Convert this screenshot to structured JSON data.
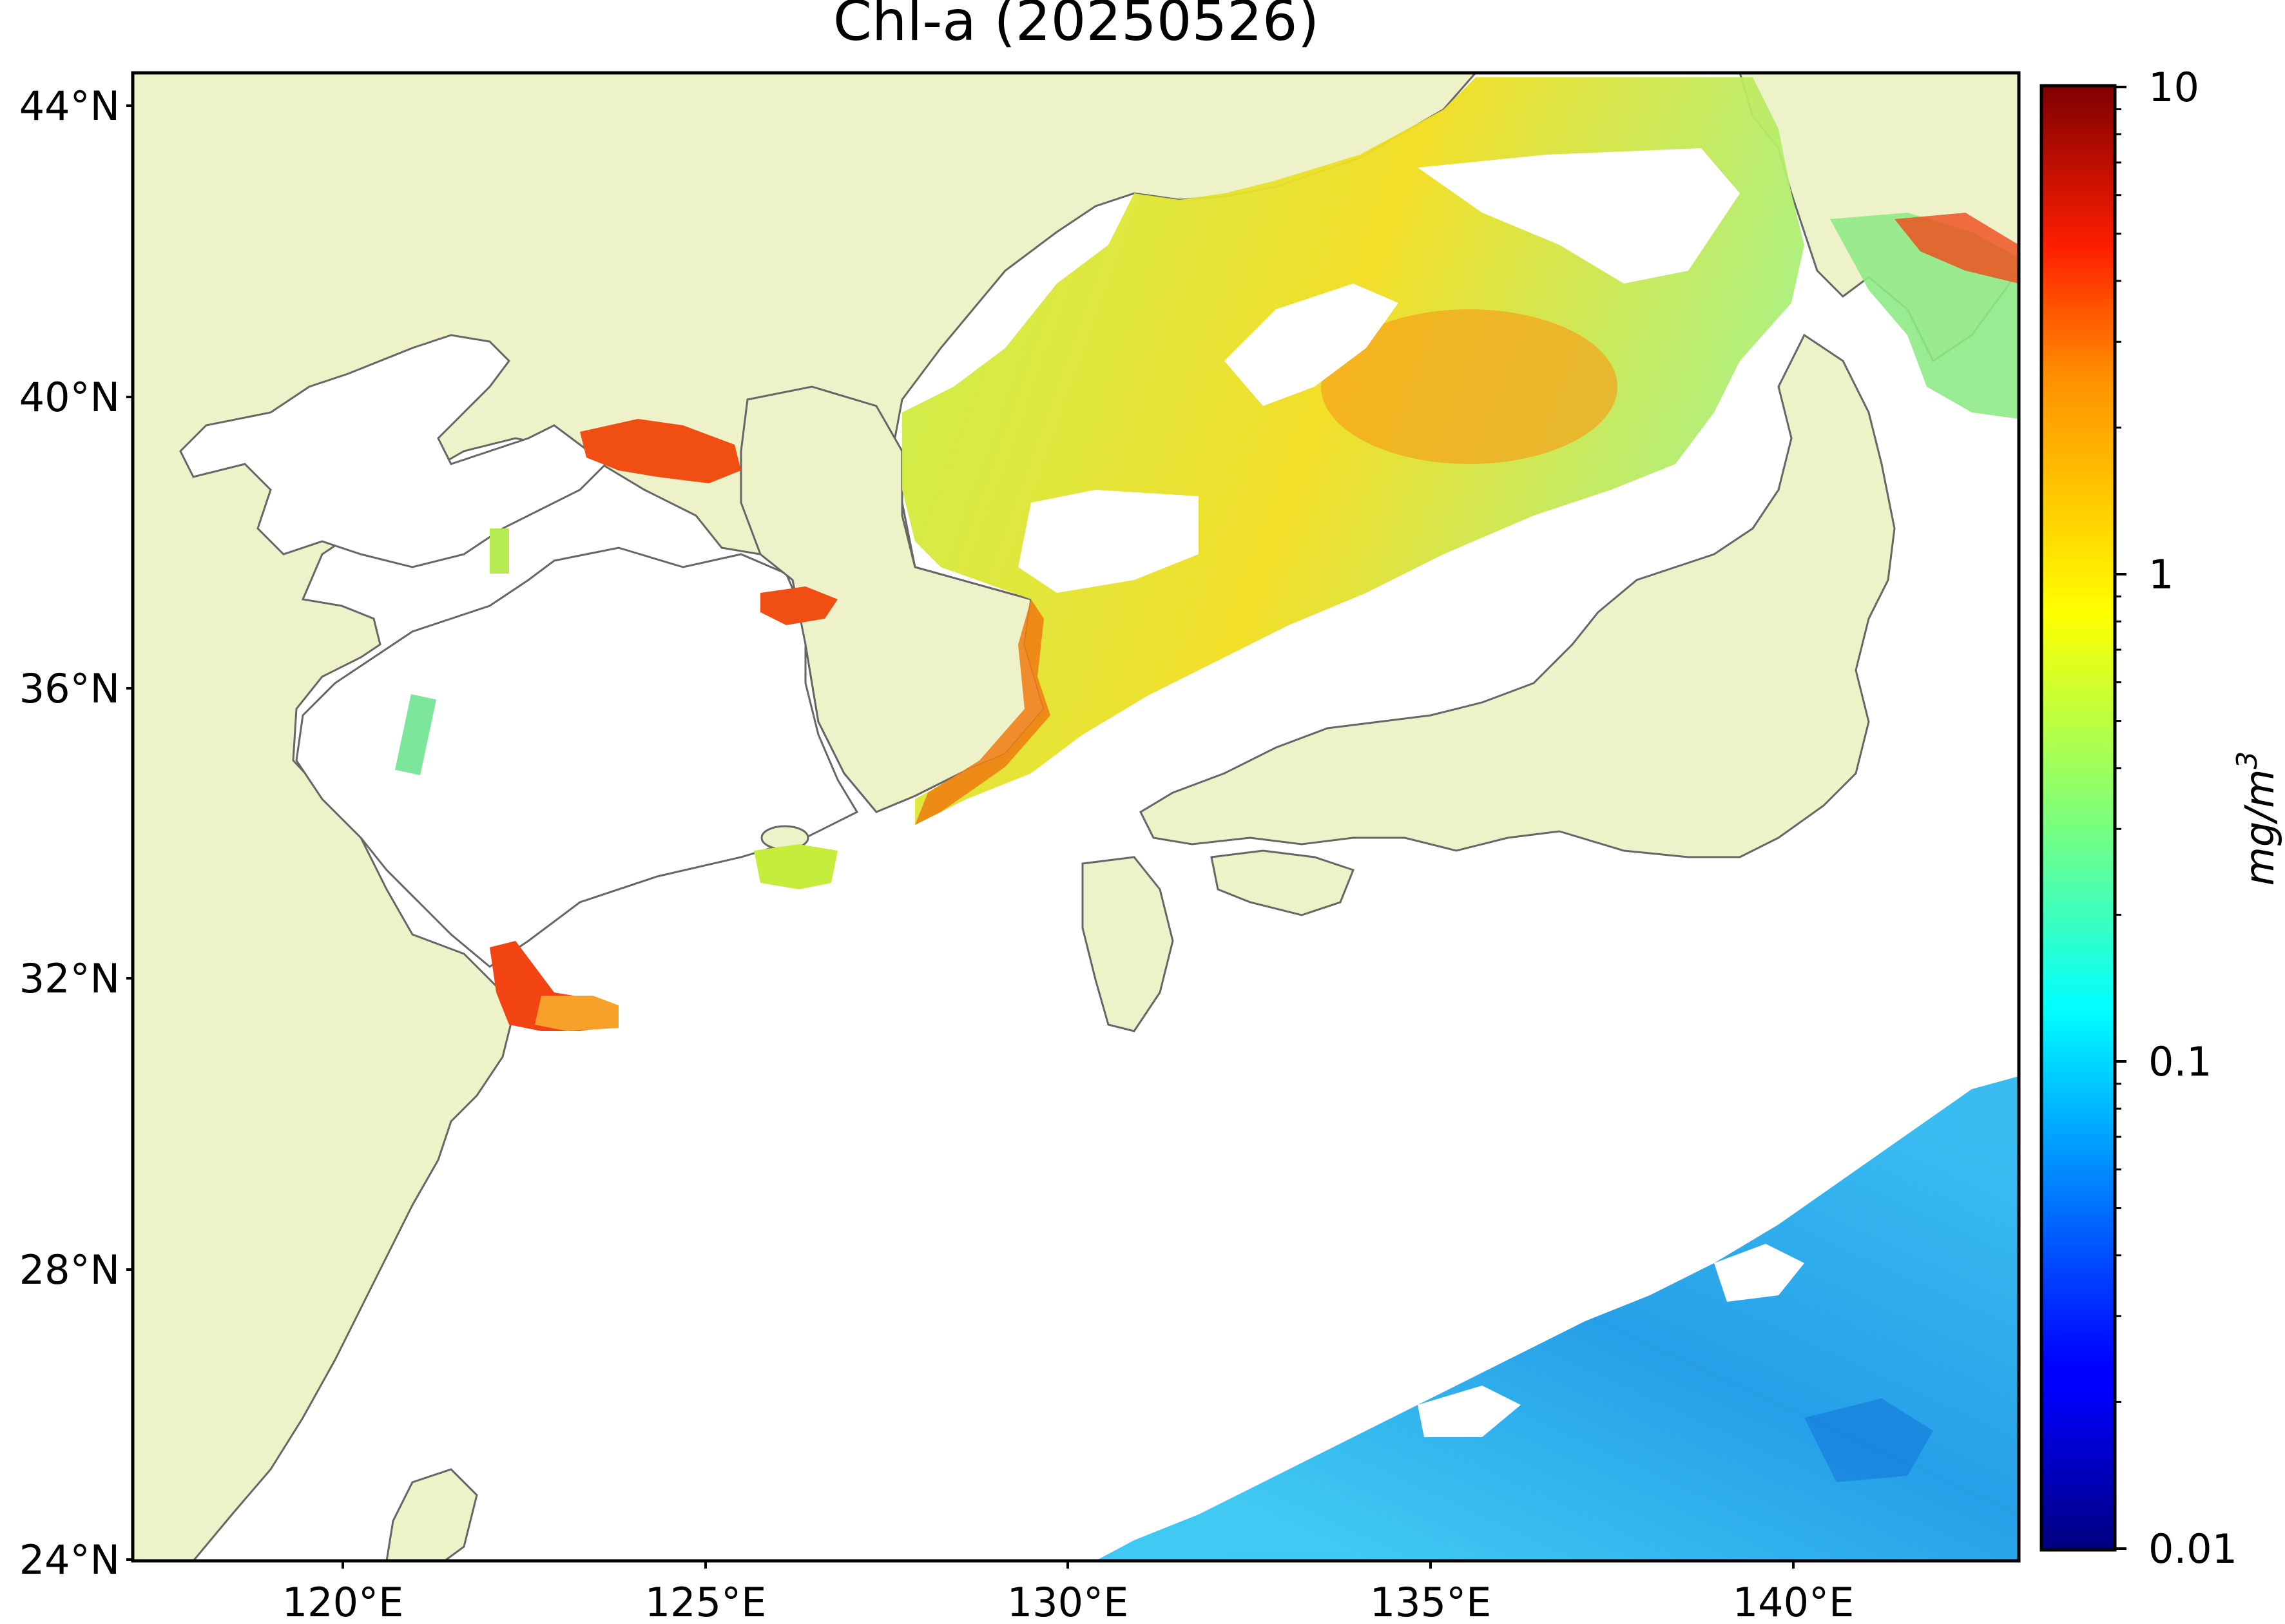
{
  "title": "Chl-a (20250526)",
  "map": {
    "lon_ticks": [
      "120°E",
      "125°E",
      "130°E",
      "135°E",
      "140°E"
    ],
    "lat_ticks": [
      "44°N",
      "40°N",
      "36°N",
      "32°N",
      "28°N",
      "24°N"
    ],
    "lon_range": [
      116.9,
      143.0
    ],
    "lat_range": [
      24.0,
      44.4
    ],
    "land_color": "#EEF2C8",
    "coast_color": "#666666",
    "ocean_color": "#FFFFFF"
  },
  "colorbar": {
    "label_main": "mg/m",
    "label_sup": "3",
    "tick_labels": [
      "10",
      "1",
      "0.1",
      "0.01"
    ],
    "range": [
      0.01,
      10
    ],
    "scale": "log",
    "colormap": "jet"
  }
}
